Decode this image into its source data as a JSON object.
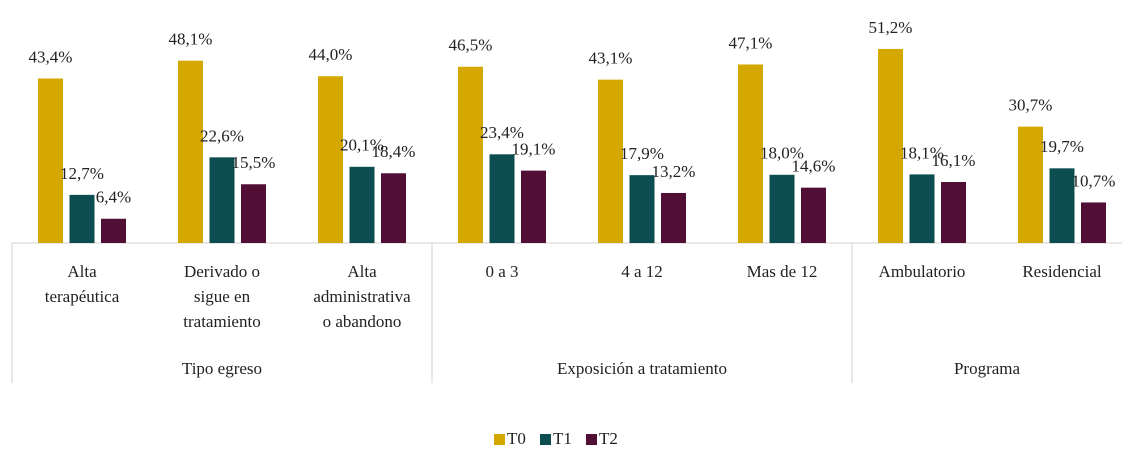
{
  "chart_data": {
    "type": "bar",
    "categories": [
      [
        "Alta",
        "terapéutica"
      ],
      [
        "Derivado o",
        "sigue en",
        "tratamiento"
      ],
      [
        "Alta",
        "administrativa",
        "o abandono"
      ],
      [
        "0 a 3"
      ],
      [
        "4 a 12"
      ],
      [
        "Mas de 12"
      ],
      [
        "Ambulatorio"
      ],
      [
        "Residencial"
      ]
    ],
    "groups": [
      {
        "name": "Tipo egreso",
        "count": 3
      },
      {
        "name": "Exposición a tratamiento",
        "count": 3
      },
      {
        "name": "Programa",
        "count": 2
      }
    ],
    "series": [
      {
        "name": "T0",
        "color": "#d4a800",
        "values": [
          43.4,
          48.1,
          44.0,
          46.5,
          43.1,
          47.1,
          51.2,
          30.7
        ],
        "value_labels": [
          "43,4%",
          "48,1%",
          "44,0%",
          "46,5%",
          "43,1%",
          "47,1%",
          "51,2%",
          "30,7%"
        ]
      },
      {
        "name": "T1",
        "color": "#0c4d4f",
        "values": [
          12.7,
          22.6,
          20.1,
          23.4,
          17.9,
          18.0,
          18.1,
          19.7
        ],
        "value_labels": [
          "12,7%",
          "22,6%",
          "20,1%",
          "23,4%",
          "17,9%",
          "18,0%",
          "18,1%",
          "19,7%"
        ]
      },
      {
        "name": "T2",
        "color": "#520f35",
        "values": [
          6.4,
          15.5,
          18.4,
          19.1,
          13.2,
          14.6,
          16.1,
          10.7
        ],
        "value_labels": [
          "6,4%",
          "15,5%",
          "18,4%",
          "19,1%",
          "13,2%",
          "14,6%",
          "16,1%",
          "10,7%"
        ]
      }
    ]
  }
}
